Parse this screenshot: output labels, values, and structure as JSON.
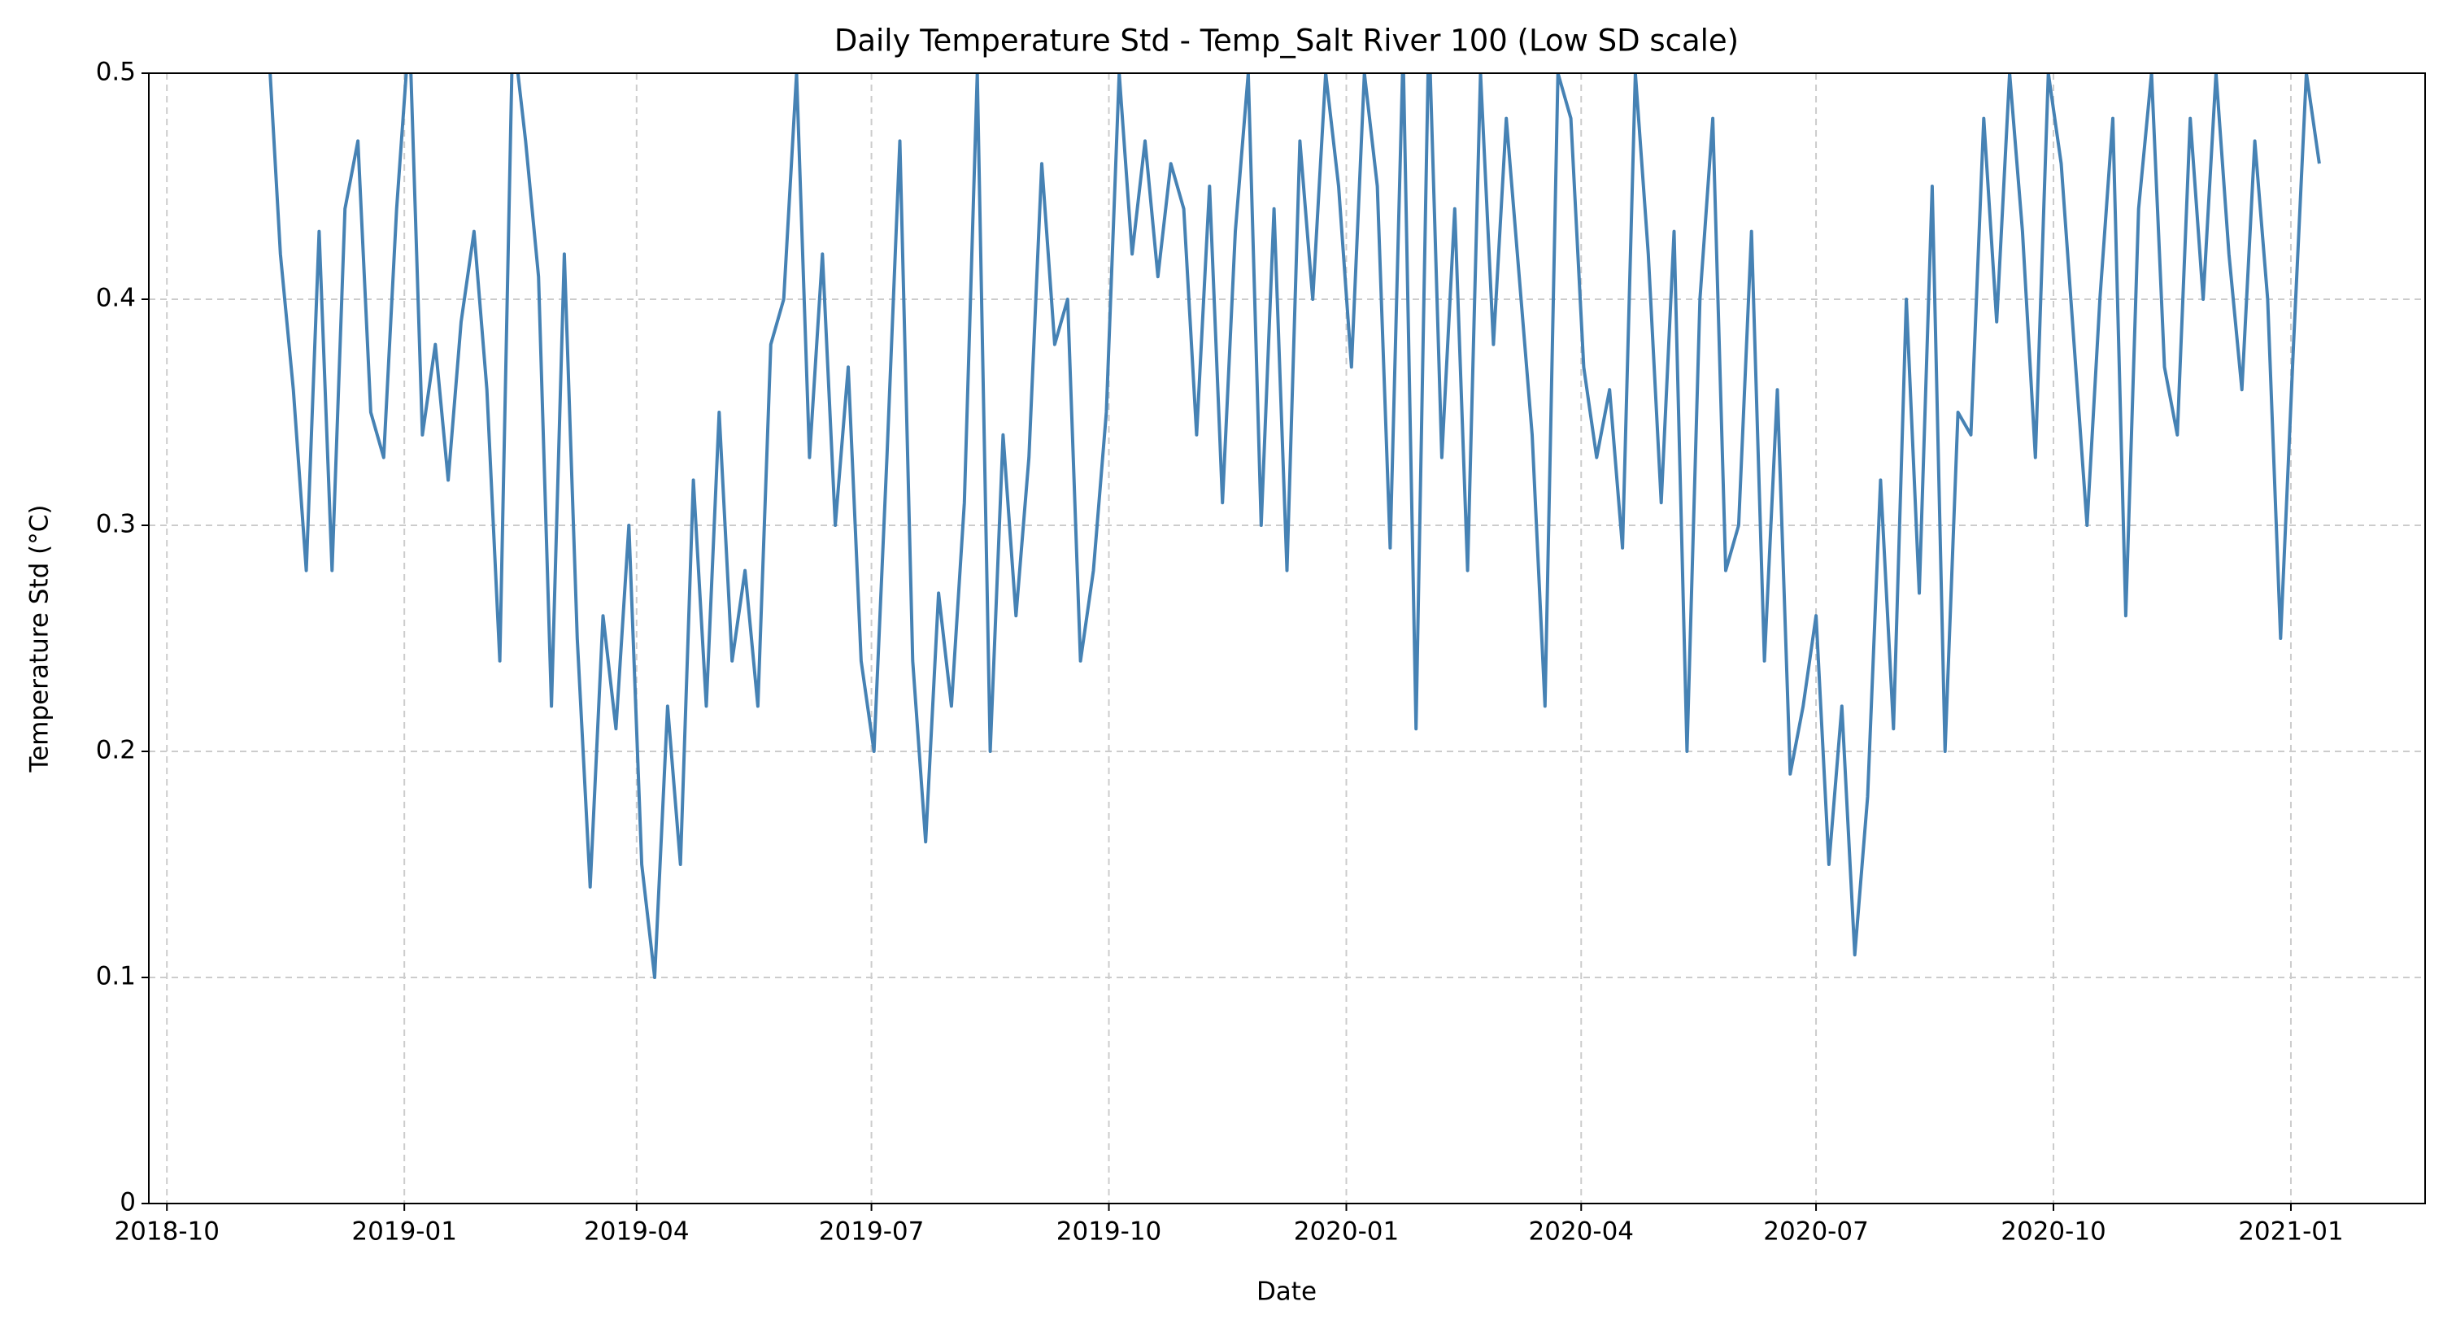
{
  "chart_data": {
    "type": "line",
    "title": "Daily Temperature Std - Temp_Salt River 100 (Low SD scale)",
    "xlabel": "Date",
    "ylabel": "Temperature Std (°C)",
    "x": [
      "2018-11-09",
      "2018-11-14",
      "2018-11-19",
      "2018-11-24",
      "2018-11-29",
      "2018-12-04",
      "2018-12-09",
      "2018-12-14",
      "2018-12-19",
      "2018-12-24",
      "2018-12-29",
      "2019-01-03",
      "2019-01-08",
      "2019-01-13",
      "2019-01-18",
      "2019-01-23",
      "2019-01-28",
      "2019-02-02",
      "2019-02-07",
      "2019-02-12",
      "2019-02-17",
      "2019-02-22",
      "2019-02-27",
      "2019-03-04",
      "2019-03-09",
      "2019-03-14",
      "2019-03-19",
      "2019-03-24",
      "2019-03-29",
      "2019-04-03",
      "2019-04-08",
      "2019-04-13",
      "2019-04-18",
      "2019-04-23",
      "2019-04-28",
      "2019-05-03",
      "2019-05-08",
      "2019-05-13",
      "2019-05-18",
      "2019-05-23",
      "2019-05-28",
      "2019-06-02",
      "2019-06-07",
      "2019-06-12",
      "2019-06-17",
      "2019-06-22",
      "2019-06-27",
      "2019-07-02",
      "2019-07-07",
      "2019-07-12",
      "2019-07-17",
      "2019-07-22",
      "2019-07-27",
      "2019-08-01",
      "2019-08-06",
      "2019-08-11",
      "2019-08-16",
      "2019-08-21",
      "2019-08-26",
      "2019-08-31",
      "2019-09-05",
      "2019-09-10",
      "2019-09-15",
      "2019-09-20",
      "2019-09-25",
      "2019-09-30",
      "2019-10-05",
      "2019-10-10",
      "2019-10-15",
      "2019-10-20",
      "2019-10-25",
      "2019-10-30",
      "2019-11-04",
      "2019-11-09",
      "2019-11-14",
      "2019-11-19",
      "2019-11-24",
      "2019-11-29",
      "2019-12-04",
      "2019-12-09",
      "2019-12-14",
      "2019-12-19",
      "2019-12-24",
      "2019-12-29",
      "2020-01-03",
      "2020-01-08",
      "2020-01-13",
      "2020-01-18",
      "2020-01-23",
      "2020-01-28",
      "2020-02-02",
      "2020-02-07",
      "2020-02-12",
      "2020-02-17",
      "2020-02-22",
      "2020-02-27",
      "2020-03-03",
      "2020-03-08",
      "2020-03-13",
      "2020-03-18",
      "2020-03-23",
      "2020-03-28",
      "2020-04-02",
      "2020-04-07",
      "2020-04-12",
      "2020-04-17",
      "2020-04-22",
      "2020-04-27",
      "2020-05-02",
      "2020-05-07",
      "2020-05-12",
      "2020-05-17",
      "2020-05-22",
      "2020-05-27",
      "2020-06-01",
      "2020-06-06",
      "2020-06-11",
      "2020-06-16",
      "2020-06-21",
      "2020-06-26",
      "2020-07-01",
      "2020-07-06",
      "2020-07-11",
      "2020-07-16",
      "2020-07-21",
      "2020-07-26",
      "2020-07-31",
      "2020-08-05",
      "2020-08-10",
      "2020-08-15",
      "2020-08-20",
      "2020-08-25",
      "2020-08-30",
      "2020-09-04",
      "2020-09-09",
      "2020-09-14",
      "2020-09-19",
      "2020-09-24",
      "2020-09-29",
      "2020-10-04",
      "2020-10-09",
      "2020-10-14",
      "2020-10-19",
      "2020-10-24",
      "2020-10-29",
      "2020-11-03",
      "2020-11-08",
      "2020-11-13",
      "2020-11-18",
      "2020-11-23",
      "2020-11-28",
      "2020-12-03",
      "2020-12-08",
      "2020-12-13",
      "2020-12-18",
      "2020-12-23",
      "2020-12-28",
      "2021-01-02",
      "2021-01-07",
      "2021-01-12"
    ],
    "series": [
      {
        "color": "#4682b4",
        "values": [
          0.52,
          0.42,
          0.36,
          0.28,
          0.43,
          0.28,
          0.44,
          0.47,
          0.35,
          0.33,
          0.44,
          0.52,
          0.34,
          0.38,
          0.32,
          0.39,
          0.43,
          0.36,
          0.24,
          0.52,
          0.47,
          0.41,
          0.22,
          0.42,
          0.25,
          0.14,
          0.26,
          0.21,
          0.3,
          0.15,
          0.1,
          0.22,
          0.15,
          0.32,
          0.22,
          0.35,
          0.24,
          0.28,
          0.22,
          0.38,
          0.4,
          0.5,
          0.33,
          0.42,
          0.3,
          0.37,
          0.24,
          0.2,
          0.33,
          0.47,
          0.24,
          0.16,
          0.27,
          0.22,
          0.31,
          0.5,
          0.2,
          0.34,
          0.26,
          0.33,
          0.46,
          0.38,
          0.4,
          0.24,
          0.28,
          0.35,
          0.5,
          0.42,
          0.47,
          0.41,
          0.46,
          0.44,
          0.34,
          0.45,
          0.31,
          0.43,
          0.5,
          0.3,
          0.44,
          0.28,
          0.47,
          0.4,
          0.5,
          0.45,
          0.37,
          0.5,
          0.45,
          0.29,
          0.51,
          0.21,
          0.52,
          0.33,
          0.44,
          0.28,
          0.5,
          0.38,
          0.48,
          0.41,
          0.34,
          0.22,
          0.5,
          0.48,
          0.37,
          0.33,
          0.36,
          0.29,
          0.5,
          0.42,
          0.31,
          0.43,
          0.2,
          0.4,
          0.48,
          0.28,
          0.3,
          0.43,
          0.24,
          0.36,
          0.19,
          0.22,
          0.26,
          0.15,
          0.22,
          0.11,
          0.18,
          0.32,
          0.21,
          0.4,
          0.27,
          0.45,
          0.2,
          0.35,
          0.34,
          0.48,
          0.39,
          0.5,
          0.43,
          0.33,
          0.5,
          0.46,
          0.38,
          0.3,
          0.4,
          0.48,
          0.26,
          0.44,
          0.5,
          0.37,
          0.34,
          0.48,
          0.4,
          0.5,
          0.42,
          0.36,
          0.47,
          0.4,
          0.25,
          0.38,
          0.5,
          0.46
        ]
      }
    ],
    "xlim": [
      "2018-09-24",
      "2021-02-22"
    ],
    "xticks": [
      "2018-10",
      "2019-01",
      "2019-04",
      "2019-07",
      "2019-10",
      "2020-01",
      "2020-04",
      "2020-07",
      "2020-10",
      "2021-01"
    ],
    "ylim": [
      0,
      0.5
    ],
    "yticks": [
      0,
      0.1,
      0.2,
      0.3,
      0.4,
      0.5
    ],
    "grid": true
  }
}
